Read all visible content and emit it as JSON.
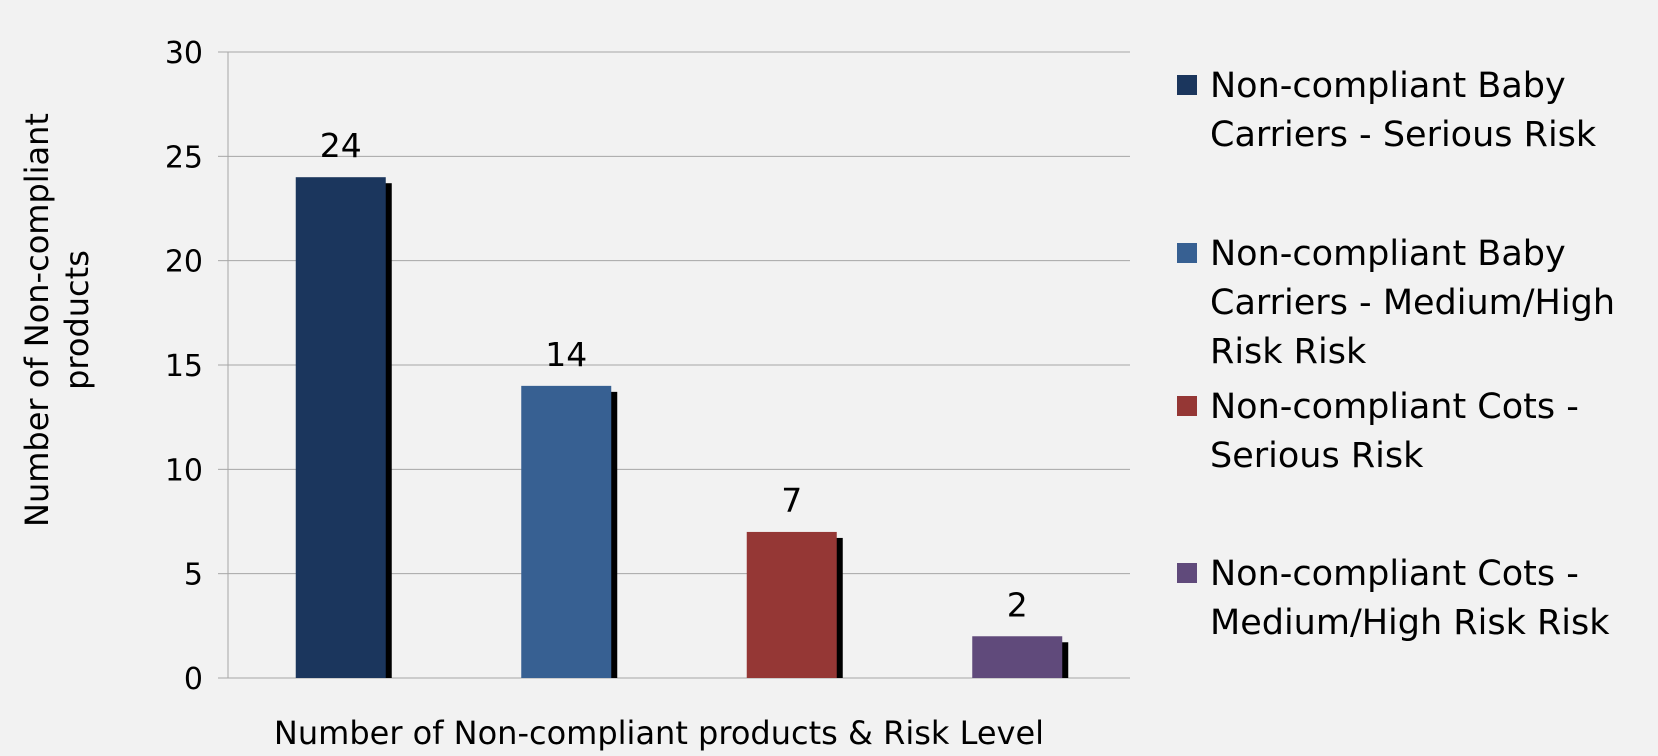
{
  "chart_data": {
    "type": "bar",
    "title": "",
    "xlabel": "Number of Non-compliant products & Risk Level",
    "ylabel_lines": [
      "Number of Non-compliant",
      "products"
    ],
    "ylim": [
      0,
      30
    ],
    "yticks": [
      0,
      5,
      10,
      15,
      20,
      25,
      30
    ],
    "grid": true,
    "legend_position": "right",
    "series": [
      {
        "label_lines": [
          "Non-compliant Baby",
          "Carriers - Serious Risk"
        ],
        "value": 24,
        "color": "#1b365d"
      },
      {
        "label_lines": [
          "Non-compliant Baby",
          "Carriers - Medium/High",
          "Risk Risk"
        ],
        "value": 14,
        "color": "#376092"
      },
      {
        "label_lines": [
          "Non-compliant Cots -",
          "Serious Risk"
        ],
        "value": 7,
        "color": "#953735"
      },
      {
        "label_lines": [
          "Non-compliant Cots -",
          "Medium/High Risk Risk"
        ],
        "value": 2,
        "color": "#604a7b"
      }
    ]
  }
}
